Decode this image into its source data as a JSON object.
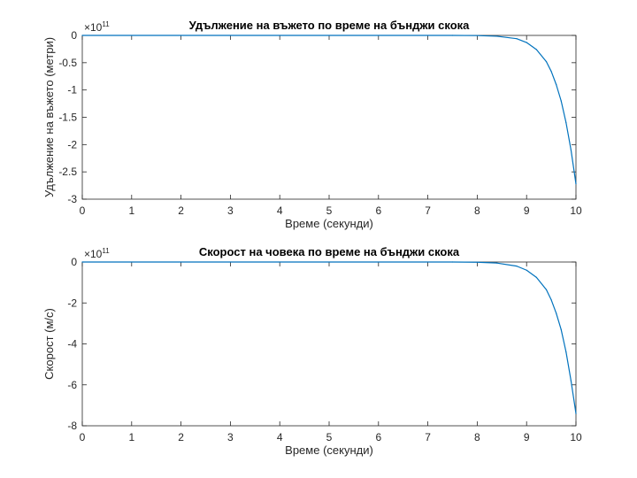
{
  "chart_data": [
    {
      "type": "line",
      "title": "Удължение на въжето по време на бънджи скока",
      "xlabel": "Време (секунди)",
      "ylabel": "Удължение на въжето (метри)",
      "xlim": [
        0,
        10
      ],
      "ylim": [
        -3,
        0
      ],
      "y_multiplier_base": "×10",
      "y_multiplier_exponent": "11",
      "xticks": [
        "0",
        "1",
        "2",
        "3",
        "4",
        "5",
        "6",
        "7",
        "8",
        "9",
        "10"
      ],
      "yticks": [
        "0",
        "-0.5",
        "-1",
        "-1.5",
        "-2",
        "-2.5",
        "-3"
      ],
      "ytick_values": [
        0,
        -0.5,
        -1,
        -1.5,
        -2,
        -2.5,
        -3
      ],
      "grid": false,
      "series": [
        {
          "color": "#0072BD",
          "points": [
            [
              0,
              0
            ],
            [
              7.5,
              0
            ],
            [
              8.0,
              -0.003
            ],
            [
              8.4,
              -0.015
            ],
            [
              8.8,
              -0.06
            ],
            [
              9.0,
              -0.13
            ],
            [
              9.2,
              -0.26
            ],
            [
              9.4,
              -0.48
            ],
            [
              9.5,
              -0.66
            ],
            [
              9.6,
              -0.9
            ],
            [
              9.7,
              -1.2
            ],
            [
              9.8,
              -1.6
            ],
            [
              9.9,
              -2.1
            ],
            [
              10.0,
              -2.72
            ]
          ]
        }
      ]
    },
    {
      "type": "line",
      "title": "Скорост на човека по време на бънджи скока",
      "xlabel": "Време (секунди)",
      "ylabel": "Скорост (м/с)",
      "xlim": [
        0,
        10
      ],
      "ylim": [
        -8,
        0
      ],
      "y_multiplier_base": "×10",
      "y_multiplier_exponent": "11",
      "xticks": [
        "0",
        "1",
        "2",
        "3",
        "4",
        "5",
        "6",
        "7",
        "8",
        "9",
        "10"
      ],
      "yticks": [
        "0",
        "-2",
        "-4",
        "-6",
        "-8"
      ],
      "ytick_values": [
        0,
        -2,
        -4,
        -6,
        -8
      ],
      "grid": false,
      "series": [
        {
          "color": "#0072BD",
          "points": [
            [
              0,
              0
            ],
            [
              7.5,
              0
            ],
            [
              8.0,
              -0.01
            ],
            [
              8.4,
              -0.05
            ],
            [
              8.8,
              -0.2
            ],
            [
              9.0,
              -0.4
            ],
            [
              9.2,
              -0.75
            ],
            [
              9.4,
              -1.35
            ],
            [
              9.5,
              -1.85
            ],
            [
              9.6,
              -2.5
            ],
            [
              9.7,
              -3.3
            ],
            [
              9.8,
              -4.4
            ],
            [
              9.9,
              -5.8
            ],
            [
              10.0,
              -7.4
            ]
          ]
        }
      ]
    }
  ]
}
